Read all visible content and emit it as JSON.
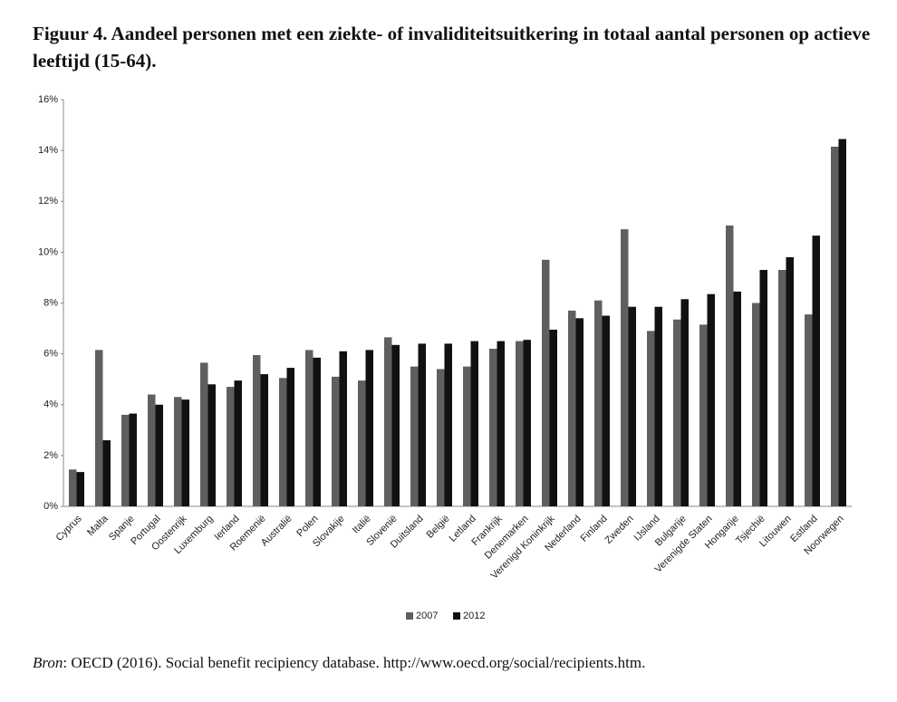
{
  "chart_data": {
    "type": "bar",
    "title": "Figuur 4. Aandeel personen met een ziekte- of invaliditeitsuitkering in totaal aantal personen op actieve leeftijd (15-64).",
    "categories": [
      "Cyprus",
      "Malta",
      "Spanje",
      "Portugal",
      "Oostenrijk",
      "Luxemburg",
      "Ierland",
      "Roemenië",
      "Australië",
      "Polen",
      "Slovakije",
      "Italië",
      "Slovenië",
      "Duitsland",
      "België",
      "Letland",
      "Frankrijk",
      "Denemarken",
      "Verenigd Koninkrijk",
      "Nederland",
      "Finland",
      "Zweden",
      "IJsland",
      "Bulgarije",
      "Verenigde Staten",
      "Hongarije",
      "Tsjechië",
      "Litouwen",
      "Estland",
      "Noorwegen"
    ],
    "series": [
      {
        "name": "2007",
        "color": "#5f5f5f",
        "values": [
          1.45,
          6.15,
          3.6,
          4.4,
          4.3,
          5.65,
          4.7,
          5.95,
          5.05,
          6.15,
          5.1,
          4.95,
          6.65,
          5.5,
          5.4,
          5.5,
          6.2,
          6.5,
          9.7,
          7.7,
          8.1,
          10.9,
          6.9,
          7.35,
          7.15,
          11.05,
          8.0,
          9.3,
          7.55,
          14.15
        ]
      },
      {
        "name": "2012",
        "color": "#111111",
        "values": [
          1.35,
          2.6,
          3.65,
          4.0,
          4.2,
          4.8,
          4.95,
          5.2,
          5.45,
          5.85,
          6.1,
          6.15,
          6.35,
          6.4,
          6.4,
          6.5,
          6.5,
          6.55,
          6.95,
          7.4,
          7.5,
          7.85,
          7.85,
          8.15,
          8.35,
          8.45,
          9.3,
          9.8,
          10.65,
          14.45
        ]
      }
    ],
    "ylim": [
      0,
      16
    ],
    "yticks": [
      {
        "value": 0,
        "label": "0%"
      },
      {
        "value": 2,
        "label": "2%"
      },
      {
        "value": 4,
        "label": "4%"
      },
      {
        "value": 6,
        "label": "6%"
      },
      {
        "value": 8,
        "label": "8%"
      },
      {
        "value": 10,
        "label": "10%"
      },
      {
        "value": 12,
        "label": "12%"
      },
      {
        "value": 14,
        "label": "14%"
      },
      {
        "value": 16,
        "label": "16%"
      }
    ],
    "legend": "bottom",
    "source_label": "Bron",
    "source_text": ": OECD (2016). Social benefit recipiency database. http://www.oecd.org/social/recipients.htm."
  }
}
